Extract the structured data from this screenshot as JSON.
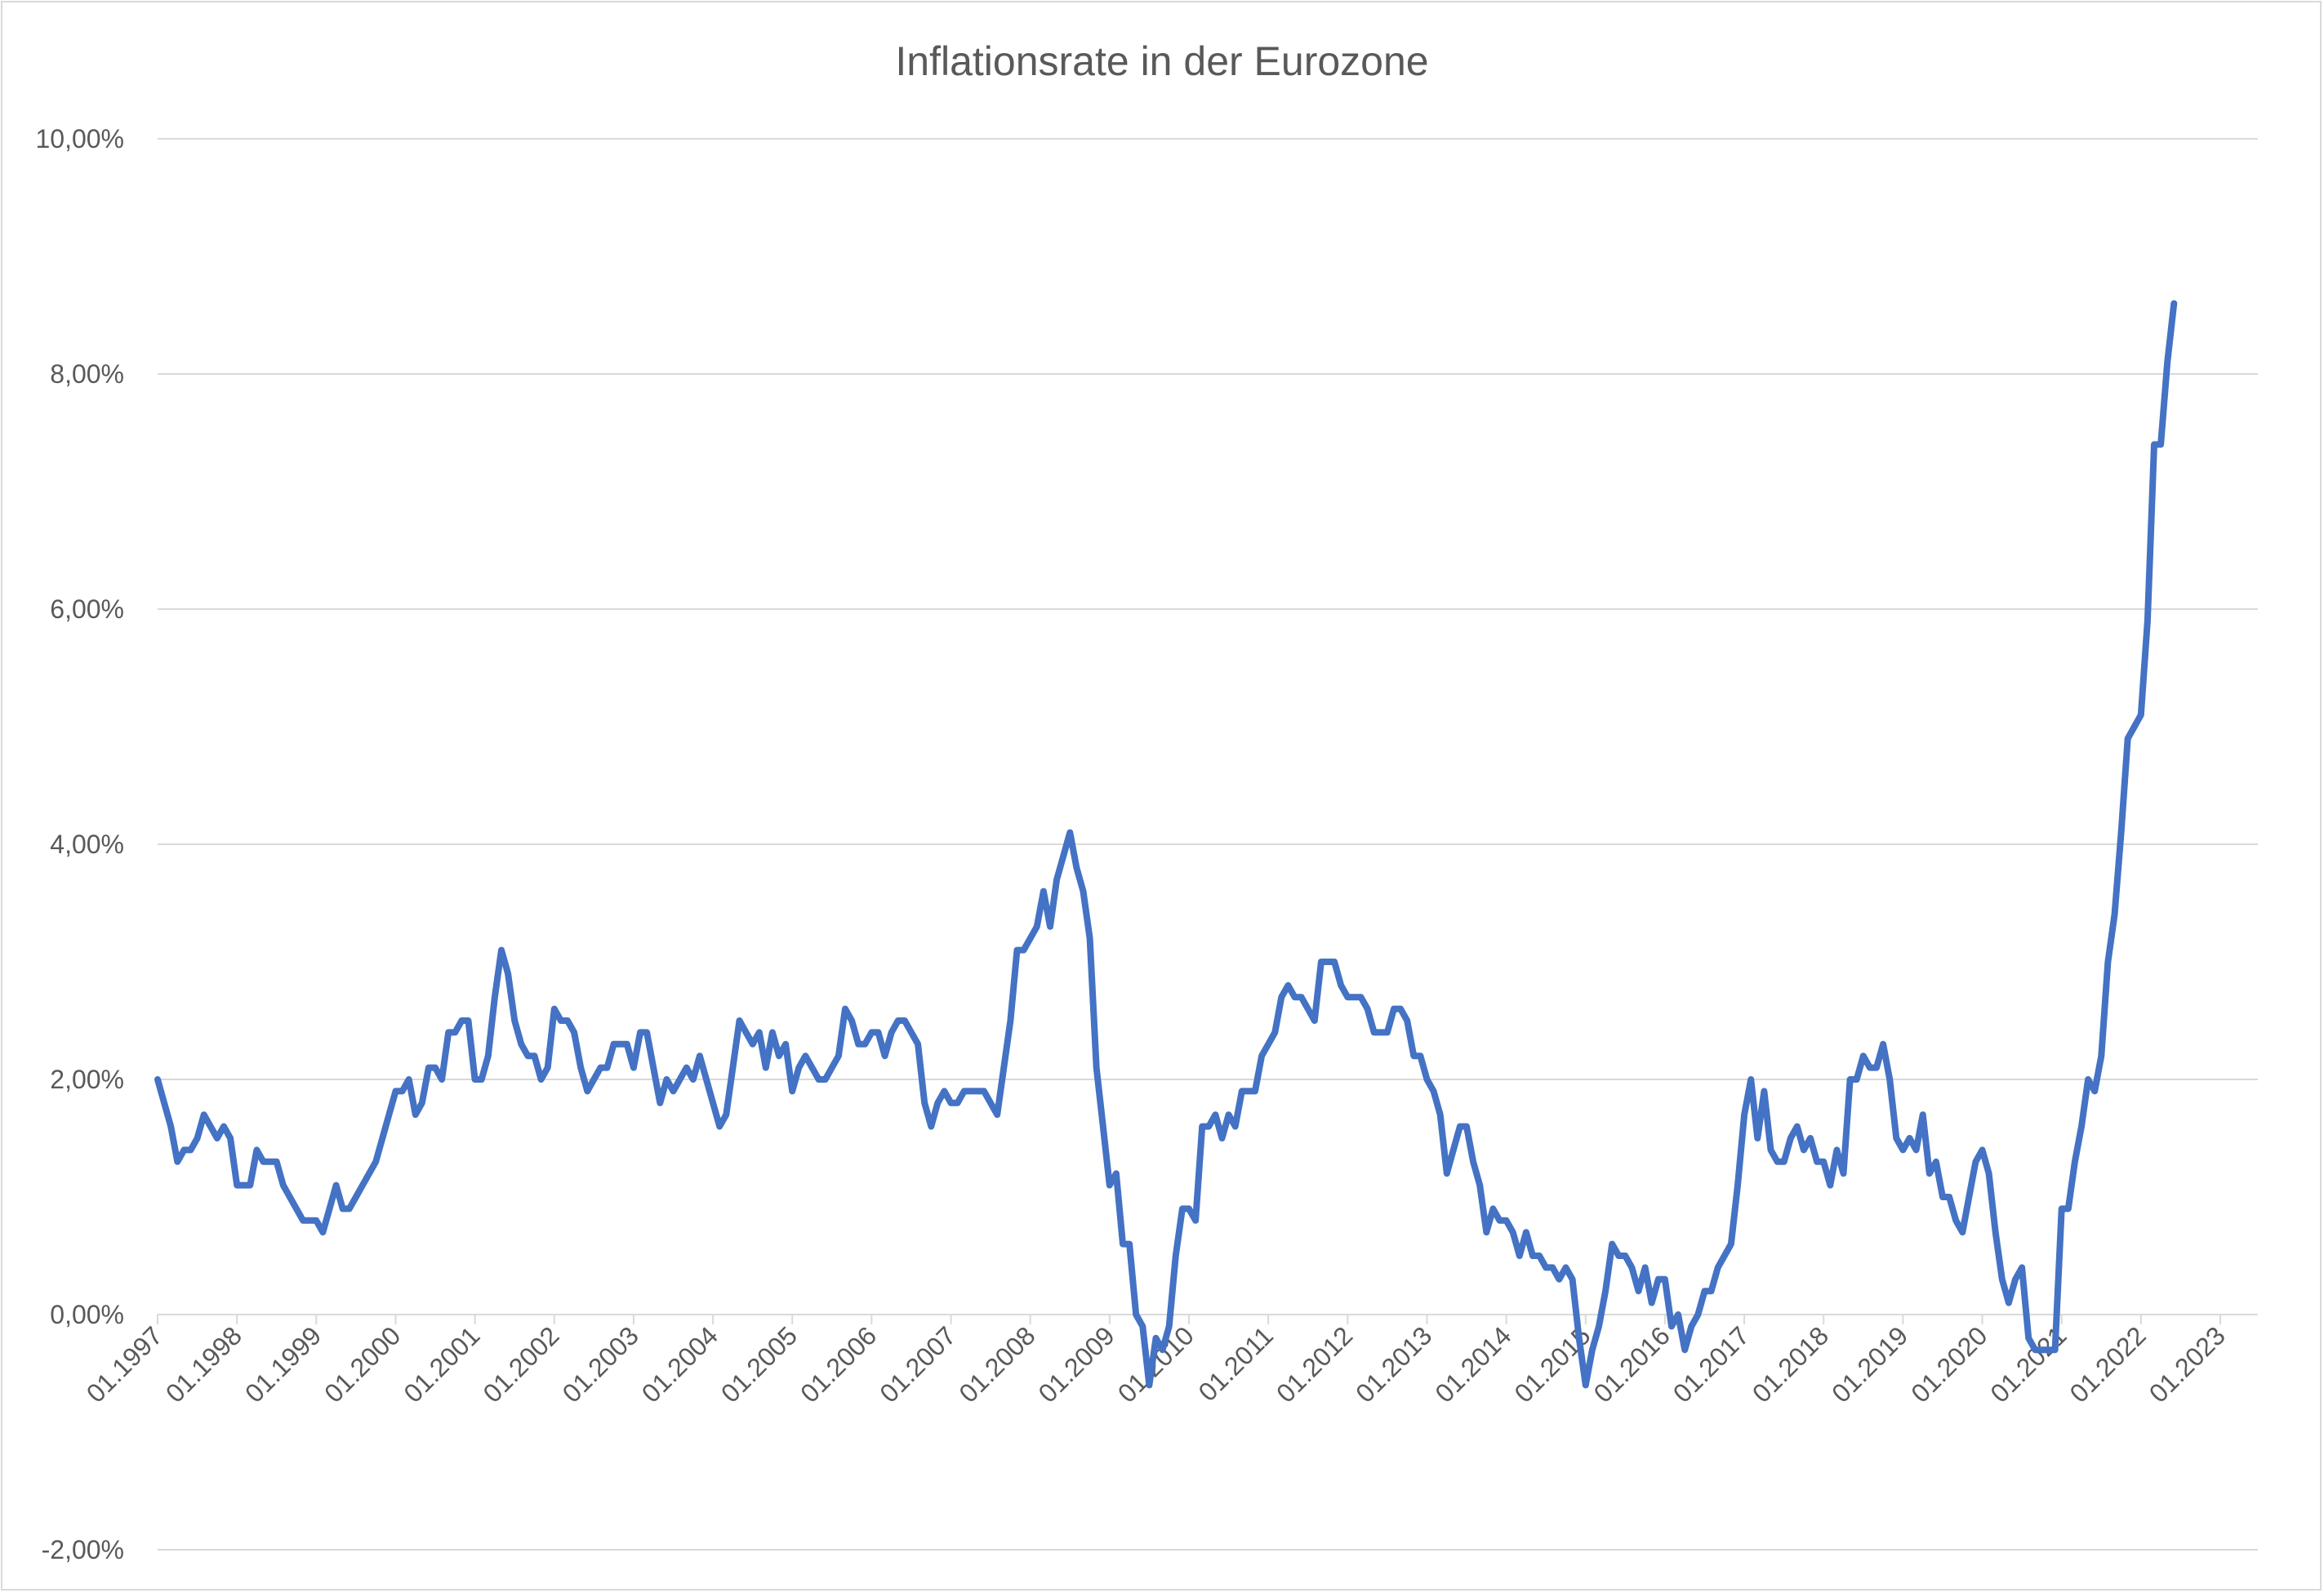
{
  "chart_data": {
    "type": "line",
    "title": "Inflationsrate in der Eurozone",
    "xlabel": "",
    "ylabel": "",
    "x_range": [
      "01.1997",
      "01.2023"
    ],
    "ylim": [
      -2,
      10
    ],
    "y_ticks": [
      -2,
      0,
      2,
      4,
      6,
      8,
      10
    ],
    "y_tick_labels": [
      "-2,00%",
      "0,00%",
      "2,00%",
      "4,00%",
      "6,00%",
      "8,00%",
      "10,00%"
    ],
    "x_tick_labels": [
      "01.1997",
      "01.1998",
      "01.1999",
      "01.2000",
      "01.2001",
      "01.2002",
      "01.2003",
      "01.2004",
      "01.2005",
      "01.2006",
      "01.2007",
      "01.2008",
      "01.2009",
      "01.2010",
      "01.2011",
      "01.2012",
      "01.2013",
      "01.2014",
      "01.2015",
      "01.2016",
      "01.2017",
      "01.2018",
      "01.2019",
      "01.2020",
      "01.2021",
      "01.2022",
      "01.2023"
    ],
    "grid": true,
    "legend": "none",
    "line_color": "#4472c4",
    "gridline_color": "#d9d9d9",
    "series": [
      {
        "x_start": "01.1997",
        "x_step": "1 month",
        "values": [
          2.0,
          1.8,
          1.6,
          1.3,
          1.4,
          1.4,
          1.5,
          1.7,
          1.6,
          1.5,
          1.6,
          1.5,
          1.1,
          1.1,
          1.1,
          1.4,
          1.3,
          1.3,
          1.3,
          1.1,
          1.0,
          0.9,
          0.8,
          0.8,
          0.8,
          0.7,
          0.9,
          1.1,
          0.9,
          0.9,
          1.0,
          1.1,
          1.2,
          1.3,
          1.5,
          1.7,
          1.9,
          1.9,
          2.0,
          1.7,
          1.8,
          2.1,
          2.1,
          2.0,
          2.4,
          2.4,
          2.5,
          2.5,
          2.0,
          2.0,
          2.2,
          2.7,
          3.1,
          2.9,
          2.5,
          2.3,
          2.2,
          2.2,
          2.0,
          2.1,
          2.6,
          2.5,
          2.5,
          2.4,
          2.1,
          1.9,
          2.0,
          2.1,
          2.1,
          2.3,
          2.3,
          2.3,
          2.1,
          2.4,
          2.4,
          2.1,
          1.8,
          2.0,
          1.9,
          2.0,
          2.1,
          2.0,
          2.2,
          2.0,
          1.8,
          1.6,
          1.7,
          2.1,
          2.5,
          2.4,
          2.3,
          2.4,
          2.1,
          2.4,
          2.2,
          2.3,
          1.9,
          2.1,
          2.2,
          2.1,
          2.0,
          2.0,
          2.1,
          2.2,
          2.6,
          2.5,
          2.3,
          2.3,
          2.4,
          2.4,
          2.2,
          2.4,
          2.5,
          2.5,
          2.4,
          2.3,
          1.8,
          1.6,
          1.8,
          1.9,
          1.8,
          1.8,
          1.9,
          1.9,
          1.9,
          1.9,
          1.8,
          1.7,
          2.1,
          2.5,
          3.1,
          3.1,
          3.2,
          3.3,
          3.6,
          3.3,
          3.7,
          3.9,
          4.1,
          3.8,
          3.6,
          3.2,
          2.1,
          1.6,
          1.1,
          1.2,
          0.6,
          0.6,
          0.0,
          -0.1,
          -0.6,
          -0.2,
          -0.3,
          -0.1,
          0.5,
          0.9,
          0.9,
          0.8,
          1.6,
          1.6,
          1.7,
          1.5,
          1.7,
          1.6,
          1.9,
          1.9,
          1.9,
          2.2,
          2.3,
          2.4,
          2.7,
          2.8,
          2.7,
          2.7,
          2.6,
          2.5,
          3.0,
          3.0,
          3.0,
          2.8,
          2.7,
          2.7,
          2.7,
          2.6,
          2.4,
          2.4,
          2.4,
          2.6,
          2.6,
          2.5,
          2.2,
          2.2,
          2.0,
          1.9,
          1.7,
          1.2,
          1.4,
          1.6,
          1.6,
          1.3,
          1.1,
          0.7,
          0.9,
          0.8,
          0.8,
          0.7,
          0.5,
          0.7,
          0.5,
          0.5,
          0.4,
          0.4,
          0.3,
          0.4,
          0.3,
          -0.2,
          -0.6,
          -0.3,
          -0.1,
          0.2,
          0.6,
          0.5,
          0.5,
          0.4,
          0.2,
          0.4,
          0.1,
          0.3,
          0.3,
          -0.1,
          0.0,
          -0.3,
          -0.1,
          0.0,
          0.2,
          0.2,
          0.4,
          0.5,
          0.6,
          1.1,
          1.7,
          2.0,
          1.5,
          1.9,
          1.4,
          1.3,
          1.3,
          1.5,
          1.6,
          1.4,
          1.5,
          1.3,
          1.3,
          1.1,
          1.4,
          1.2,
          2.0,
          2.0,
          2.2,
          2.1,
          2.1,
          2.3,
          2.0,
          1.5,
          1.4,
          1.5,
          1.4,
          1.7,
          1.2,
          1.3,
          1.0,
          1.0,
          0.8,
          0.7,
          1.0,
          1.3,
          1.4,
          1.2,
          0.7,
          0.3,
          0.1,
          0.3,
          0.4,
          -0.2,
          -0.3,
          -0.3,
          -0.3,
          -0.3,
          0.9,
          0.9,
          1.3,
          1.6,
          2.0,
          1.9,
          2.2,
          3.0,
          3.4,
          4.1,
          4.9,
          5.0,
          5.1,
          5.9,
          7.4,
          7.4,
          8.1,
          8.6
        ]
      }
    ]
  }
}
